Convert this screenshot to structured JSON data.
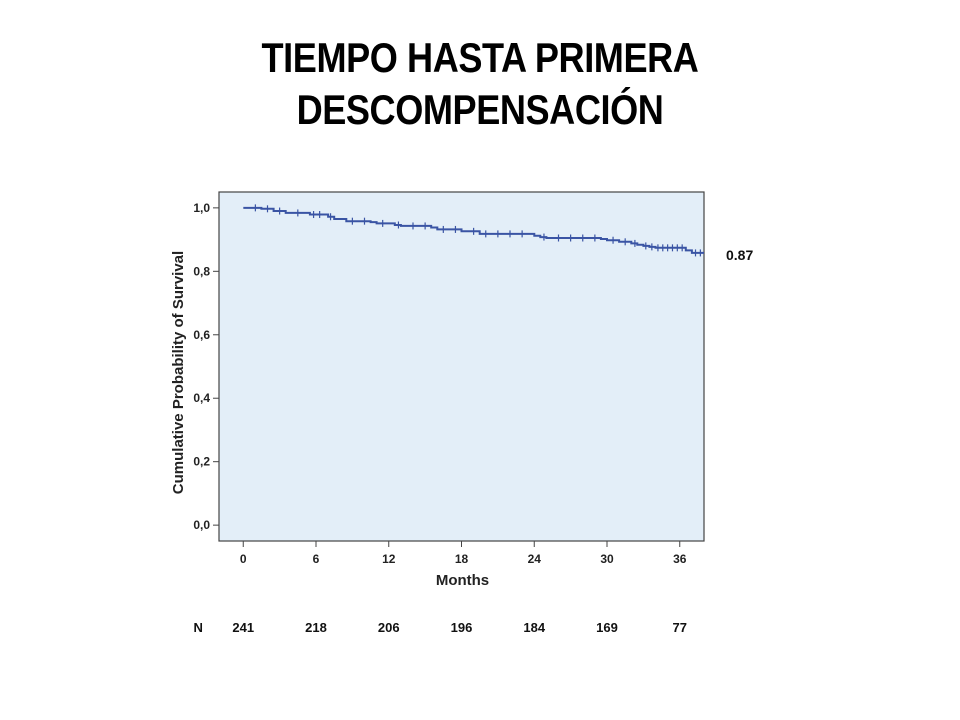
{
  "title_lines": [
    "TIEMPO HASTA PRIMERA",
    "DESCOMPENSACIÓN"
  ],
  "colors": {
    "plot_background": "#e3eef8",
    "curve": "#3a54a4",
    "frame": "#444444"
  },
  "chart_data": {
    "type": "line",
    "subtype": "kaplan-meier",
    "xlabel": "Months",
    "ylabel": "Cumulative Probability of Survival",
    "xlim": [
      -2,
      38
    ],
    "ylim": [
      -0.05,
      1.05
    ],
    "x_ticks": [
      0,
      6,
      12,
      18,
      24,
      30,
      36
    ],
    "x_tick_labels": [
      "0",
      "6",
      "12",
      "18",
      "24",
      "30",
      "36"
    ],
    "y_ticks": [
      0.0,
      0.2,
      0.4,
      0.6,
      0.8,
      1.0
    ],
    "y_tick_labels": [
      "0,0",
      "0,2",
      "0,4",
      "0,6",
      "0,8",
      "1,0"
    ],
    "grid": false,
    "curve": {
      "x": [
        0,
        1.5,
        2.5,
        3.5,
        5.5,
        7.0,
        7.5,
        8.5,
        10.5,
        11.0,
        12.5,
        13.0,
        15.5,
        16.0,
        18.0,
        19.5,
        24.0,
        24.5,
        25.0,
        29.5,
        30.0,
        31.0,
        32.0,
        32.5,
        33.0,
        33.5,
        34.0,
        36.5,
        37.0,
        38.0
      ],
      "y": [
        1.0,
        0.997,
        0.99,
        0.984,
        0.979,
        0.972,
        0.965,
        0.958,
        0.955,
        0.951,
        0.946,
        0.943,
        0.938,
        0.932,
        0.926,
        0.918,
        0.912,
        0.908,
        0.905,
        0.902,
        0.898,
        0.893,
        0.888,
        0.884,
        0.88,
        0.877,
        0.874,
        0.866,
        0.858,
        0.858
      ]
    },
    "censor_marks_x": [
      1.0,
      2.0,
      3.0,
      4.5,
      5.8,
      6.3,
      7.2,
      9.0,
      10.0,
      11.5,
      12.8,
      14.0,
      15.0,
      16.5,
      17.5,
      19.0,
      20.0,
      21.0,
      22.0,
      23.0,
      24.8,
      26.0,
      27.0,
      28.0,
      29.0,
      30.5,
      31.5,
      32.3,
      33.2,
      33.7,
      34.2,
      34.6,
      35.0,
      35.4,
      35.8,
      36.2,
      37.3,
      37.7
    ],
    "annotation": "0.87",
    "n_at_risk": {
      "label": "N",
      "x": [
        0,
        6,
        12,
        18,
        24,
        30,
        36
      ],
      "values": [
        "241",
        "218",
        "206",
        "196",
        "184",
        "169",
        "77"
      ]
    }
  }
}
